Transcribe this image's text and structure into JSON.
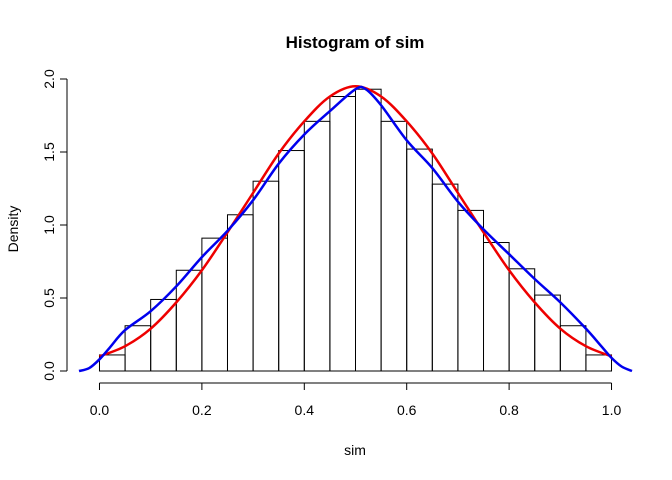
{
  "chart_data": {
    "type": "histogram",
    "title": "Histogram of sim",
    "xlabel": "sim",
    "ylabel": "Density",
    "xlim": [
      -0.04,
      1.04
    ],
    "ylim": [
      0,
      2.0
    ],
    "x_ticks": [
      "0.0",
      "0.2",
      "0.4",
      "0.6",
      "0.8",
      "1.0"
    ],
    "x_tick_values": [
      0.0,
      0.2,
      0.4,
      0.6,
      0.8,
      1.0
    ],
    "y_ticks": [
      "0.0",
      "0.5",
      "1.0",
      "1.5",
      "2.0"
    ],
    "y_tick_values": [
      0.0,
      0.5,
      1.0,
      1.5,
      2.0
    ],
    "grid": false,
    "bin_edges": [
      0.0,
      0.05,
      0.1,
      0.15,
      0.2,
      0.25,
      0.3,
      0.35,
      0.4,
      0.45,
      0.5,
      0.55,
      0.6,
      0.65,
      0.7,
      0.75,
      0.8,
      0.85,
      0.9,
      0.95,
      1.0
    ],
    "densities": [
      0.11,
      0.31,
      0.49,
      0.69,
      0.91,
      1.07,
      1.3,
      1.51,
      1.71,
      1.88,
      1.93,
      1.71,
      1.52,
      1.28,
      1.1,
      0.88,
      0.7,
      0.52,
      0.31,
      0.11
    ],
    "colors": {
      "bars": "#000000",
      "theoretical": "#ee0000",
      "kde": "#0000ee"
    },
    "series": [
      {
        "color": "#ee0000",
        "x": [
          0.0,
          0.05,
          0.1,
          0.15,
          0.2,
          0.25,
          0.3,
          0.35,
          0.4,
          0.45,
          0.5,
          0.55,
          0.6,
          0.65,
          0.7,
          0.75,
          0.8,
          0.85,
          0.9,
          0.95,
          1.0
        ],
        "y": [
          0.1,
          0.17,
          0.29,
          0.47,
          0.69,
          0.95,
          1.22,
          1.49,
          1.71,
          1.88,
          1.95,
          1.88,
          1.71,
          1.49,
          1.22,
          0.95,
          0.69,
          0.47,
          0.29,
          0.17,
          0.1
        ]
      },
      {
        "color": "#0000ee",
        "x": [
          -0.04,
          -0.02,
          0.0,
          0.02,
          0.05,
          0.1,
          0.15,
          0.2,
          0.25,
          0.3,
          0.35,
          0.4,
          0.45,
          0.5,
          0.52,
          0.55,
          0.6,
          0.65,
          0.7,
          0.75,
          0.8,
          0.85,
          0.9,
          0.95,
          0.98,
          1.0,
          1.02,
          1.04
        ],
        "y": [
          0.0,
          0.02,
          0.08,
          0.16,
          0.28,
          0.41,
          0.58,
          0.78,
          0.96,
          1.17,
          1.42,
          1.62,
          1.78,
          1.93,
          1.93,
          1.82,
          1.58,
          1.39,
          1.16,
          0.97,
          0.8,
          0.63,
          0.47,
          0.29,
          0.17,
          0.09,
          0.03,
          0.0
        ]
      }
    ]
  }
}
